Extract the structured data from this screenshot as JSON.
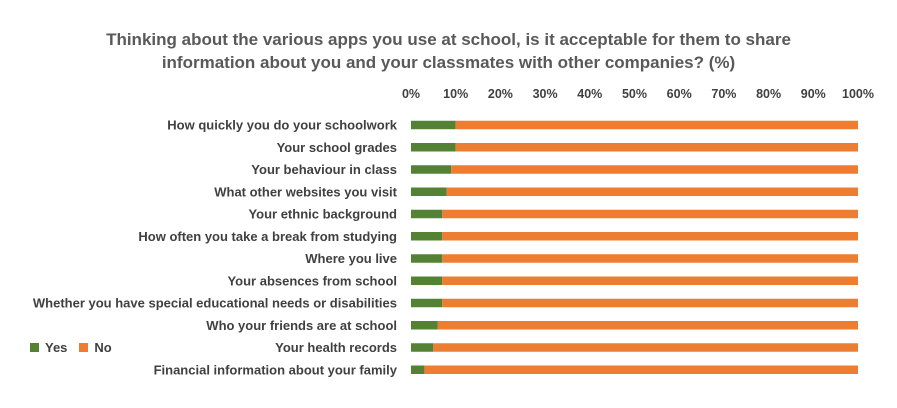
{
  "chart_data": {
    "type": "bar",
    "orientation": "horizontal",
    "stacked": true,
    "title_lines": [
      "Thinking about the various apps you use at school, is it acceptable for them to share",
      "information about you and your classmates with other companies? (%)"
    ],
    "categories": [
      "How quickly you do your schoolwork",
      "Your school grades",
      "Your behaviour in class",
      "What other websites you visit",
      "Your ethnic background",
      "How often you take a break from studying",
      "Where you live",
      "Your absences from school",
      "Whether you have special educational needs or disabilities",
      "Who your friends are at school",
      "Your health records",
      "Financial information about your family"
    ],
    "series": [
      {
        "name": "Yes",
        "color": "#548235",
        "values": [
          10,
          10,
          9,
          8,
          7,
          7,
          7,
          7,
          7,
          6,
          5,
          3
        ]
      },
      {
        "name": "No",
        "color": "#ED7D31",
        "values": [
          90,
          90,
          91,
          92,
          93,
          93,
          93,
          93,
          93,
          94,
          95,
          97
        ]
      }
    ],
    "x_ticks": [
      "0%",
      "10%",
      "20%",
      "30%",
      "40%",
      "50%",
      "60%",
      "70%",
      "80%",
      "90%",
      "100%"
    ],
    "xlim": [
      0,
      100
    ],
    "x_axis_position": "top",
    "grid": false,
    "legend_position": "bottom-left"
  }
}
